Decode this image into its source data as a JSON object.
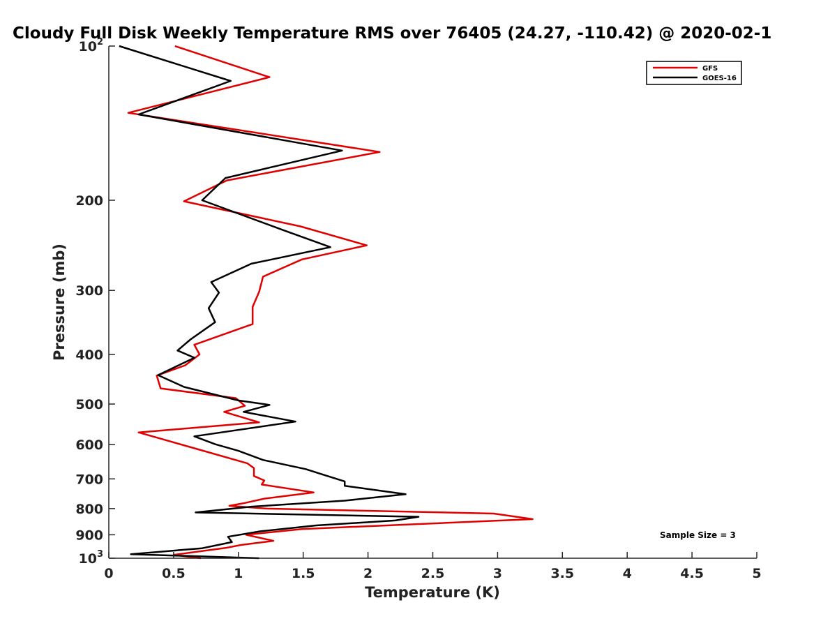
{
  "chart_data": {
    "type": "line",
    "title": "Cloudy Full Disk Weekly Temperature RMS over 76405 (24.27, -110.42) @ 2020-02-1",
    "xlabel": "Temperature (K)",
    "ylabel": "Pressure (mb)",
    "xlim": [
      0,
      5
    ],
    "ylim": [
      1000,
      100
    ],
    "yscale": "log",
    "x_ticks": [
      {
        "value": 0,
        "label": "0"
      },
      {
        "value": 0.5,
        "label": "0.5"
      },
      {
        "value": 1,
        "label": "1"
      },
      {
        "value": 1.5,
        "label": "1.5"
      },
      {
        "value": 2,
        "label": "2"
      },
      {
        "value": 2.5,
        "label": "2.5"
      },
      {
        "value": 3,
        "label": "3"
      },
      {
        "value": 3.5,
        "label": "3.5"
      },
      {
        "value": 4,
        "label": "4"
      },
      {
        "value": 4.5,
        "label": "4.5"
      },
      {
        "value": 5,
        "label": "5"
      }
    ],
    "y_ticks": [
      {
        "value": 100,
        "base": "10",
        "exp": "2"
      },
      {
        "value": 200,
        "label": "200"
      },
      {
        "value": 300,
        "label": "300"
      },
      {
        "value": 400,
        "label": "400"
      },
      {
        "value": 500,
        "label": "500"
      },
      {
        "value": 600,
        "label": "600"
      },
      {
        "value": 700,
        "label": "700"
      },
      {
        "value": 800,
        "label": "800"
      },
      {
        "value": 900,
        "label": "900"
      },
      {
        "value": 1000,
        "base": "10",
        "exp": "3"
      }
    ],
    "legend": {
      "position": "top-right"
    },
    "annotation": "Sample Size = 3",
    "series": [
      {
        "name": "GFS",
        "color": "#e00000",
        "points": [
          [
            0.51,
            100
          ],
          [
            1.24,
            115
          ],
          [
            0.15,
            135
          ],
          [
            2.09,
            161
          ],
          [
            0.91,
            183
          ],
          [
            0.58,
            201
          ],
          [
            1.48,
            225
          ],
          [
            1.99,
            245
          ],
          [
            1.49,
            261
          ],
          [
            1.19,
            282
          ],
          [
            1.16,
            302
          ],
          [
            1.11,
            323
          ],
          [
            1.11,
            349
          ],
          [
            0.66,
            383
          ],
          [
            0.7,
            400
          ],
          [
            0.59,
            420
          ],
          [
            0.37,
            440
          ],
          [
            0.4,
            466
          ],
          [
            0.98,
            487
          ],
          [
            1.05,
            504
          ],
          [
            0.89,
            518
          ],
          [
            1.16,
            543
          ],
          [
            0.23,
            568
          ],
          [
            0.7,
            614
          ],
          [
            1.07,
            653
          ],
          [
            1.12,
            667
          ],
          [
            1.12,
            691
          ],
          [
            1.2,
            705
          ],
          [
            1.18,
            718
          ],
          [
            1.58,
            744
          ],
          [
            1.2,
            765
          ],
          [
            1.05,
            780
          ],
          [
            0.93,
            790
          ],
          [
            1.22,
            800
          ],
          [
            2.97,
            818
          ],
          [
            3.27,
            839
          ],
          [
            1.49,
            877
          ],
          [
            1.06,
            900
          ],
          [
            1.27,
            925
          ],
          [
            1.02,
            942
          ],
          [
            0.9,
            955
          ],
          [
            0.5,
            985
          ],
          [
            0.71,
            1000
          ]
        ]
      },
      {
        "name": "GOES-16",
        "color": "#000000",
        "points": [
          [
            0.08,
            100
          ],
          [
            0.94,
            117
          ],
          [
            0.23,
            136
          ],
          [
            1.8,
            160
          ],
          [
            0.9,
            181
          ],
          [
            0.72,
            200
          ],
          [
            1.35,
            229
          ],
          [
            1.71,
            247
          ],
          [
            1.1,
            266
          ],
          [
            0.79,
            289
          ],
          [
            0.85,
            303
          ],
          [
            0.77,
            325
          ],
          [
            0.82,
            346
          ],
          [
            0.63,
            374
          ],
          [
            0.53,
            393
          ],
          [
            0.66,
            406
          ],
          [
            0.38,
            439
          ],
          [
            0.58,
            463
          ],
          [
            1.0,
            492
          ],
          [
            1.24,
            502
          ],
          [
            1.04,
            518
          ],
          [
            1.44,
            541
          ],
          [
            0.66,
            578
          ],
          [
            0.82,
            599
          ],
          [
            1.0,
            617
          ],
          [
            1.19,
            643
          ],
          [
            1.52,
            670
          ],
          [
            1.64,
            685
          ],
          [
            1.82,
            708
          ],
          [
            1.82,
            722
          ],
          [
            2.29,
            750
          ],
          [
            1.82,
            772
          ],
          [
            1.1,
            793
          ],
          [
            0.67,
            814
          ],
          [
            2.39,
            830
          ],
          [
            2.21,
            844
          ],
          [
            1.6,
            863
          ],
          [
            1.17,
            886
          ],
          [
            0.92,
            908
          ],
          [
            0.95,
            930
          ],
          [
            0.72,
            956
          ],
          [
            0.17,
            982
          ],
          [
            1.16,
            1000
          ]
        ]
      }
    ]
  }
}
